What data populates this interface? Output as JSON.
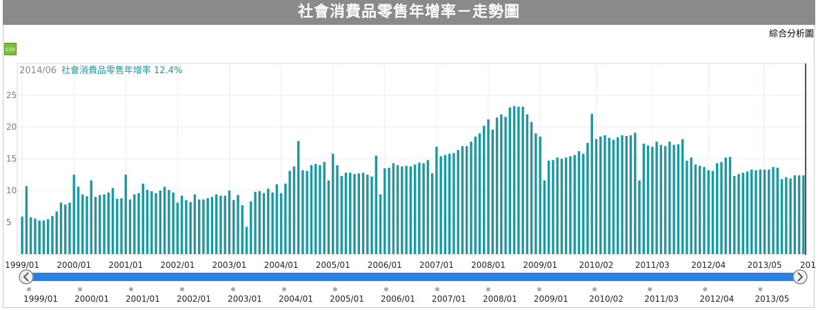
{
  "page": {
    "title": "社會消費品零售年增率－走勢圖",
    "analysis_link": "綜合分析圖",
    "csv_label": "CSV"
  },
  "legend": {
    "date": "2014/06",
    "series": "社會消費品零售年增率 12.4%"
  },
  "colors": {
    "bar": "#1a9aa0",
    "nav": "#2a7fe0",
    "title_bg": "#8a8a8a"
  },
  "chart_data": {
    "type": "bar",
    "title": "社會消費品零售年增率－走勢圖",
    "xlabel": "",
    "ylabel": "",
    "ylim": [
      0,
      30
    ],
    "yticks": [
      5,
      10,
      15,
      20,
      25
    ],
    "grid": true,
    "x_start": "1999/01",
    "x_end": "2014/06",
    "x_tick_labels": [
      "1999/01",
      "2000/01",
      "2001/01",
      "2002/01",
      "2003/01",
      "2004/01",
      "2005/01",
      "2006/01",
      "2007/01",
      "2008/01",
      "2009/01",
      "2010/02",
      "2011/03",
      "2012/04",
      "2013/05",
      "201"
    ],
    "navigator_labels": [
      "1999/01",
      "2000/01",
      "2001/01",
      "2002/01",
      "2003/01",
      "2004/01",
      "2005/01",
      "2006/01",
      "2007/01",
      "2008/01",
      "2009/01",
      "2010/02",
      "2011/03",
      "2012/04",
      "2013/05"
    ],
    "series": [
      {
        "values": [
          5.9,
          10.7,
          5.8,
          5.6,
          5.3,
          5.3,
          5.5,
          6.0,
          6.7,
          8.1,
          7.8,
          8.1,
          12.5,
          10.6,
          9.4,
          9.1,
          11.6,
          9.0,
          9.3,
          9.4,
          9.7,
          10.4,
          8.7,
          8.8,
          12.5,
          8.6,
          9.4,
          9.6,
          11.1,
          10.1,
          9.9,
          9.6,
          10.0,
          10.6,
          10.1,
          9.7,
          8.1,
          9.2,
          8.5,
          8.2,
          9.4,
          8.6,
          8.6,
          8.8,
          9.0,
          9.4,
          9.2,
          9.2,
          10.0,
          8.5,
          9.3,
          7.7,
          4.3,
          8.3,
          9.8,
          9.9,
          9.6,
          10.3,
          9.7,
          11.0,
          9.6,
          11.1,
          13.1,
          13.8,
          17.8,
          13.2,
          13.1,
          14.0,
          14.2,
          14.0,
          14.5,
          11.6,
          15.8,
          14.0,
          12.3,
          12.8,
          12.8,
          12.6,
          12.7,
          12.8,
          12.5,
          12.2,
          15.5,
          9.4,
          13.5,
          13.6,
          14.3,
          14.0,
          13.8,
          13.9,
          13.8,
          14.1,
          14.4,
          14.3,
          14.8,
          12.7,
          16.9,
          15.4,
          15.6,
          15.8,
          15.9,
          16.4,
          17.0,
          17.0,
          17.7,
          18.5,
          19.0,
          20.2,
          21.2,
          19.6,
          21.5,
          22.0,
          21.6,
          23.1,
          23.3,
          23.2,
          23.2,
          22.0,
          20.8,
          19.0,
          18.5,
          11.6,
          14.7,
          14.8,
          15.2,
          15.0,
          15.2,
          15.4,
          15.6,
          16.2,
          15.8,
          17.5,
          22.1,
          18.1,
          18.5,
          18.7,
          18.3,
          18.0,
          18.4,
          18.7,
          18.6,
          18.7,
          19.1,
          11.6,
          17.4,
          17.1,
          16.9,
          17.7,
          17.2,
          17.0,
          17.7,
          17.2,
          17.3,
          18.1,
          14.7,
          15.2,
          14.1,
          13.9,
          13.7,
          13.2,
          13.1,
          14.3,
          14.5,
          15.2,
          15.3,
          12.3,
          12.6,
          12.8,
          13.0,
          13.3,
          13.2,
          13.3,
          13.3,
          13.3,
          13.7,
          13.6,
          11.8,
          12.1,
          11.9,
          12.4,
          12.4,
          12.4
        ]
      }
    ]
  }
}
